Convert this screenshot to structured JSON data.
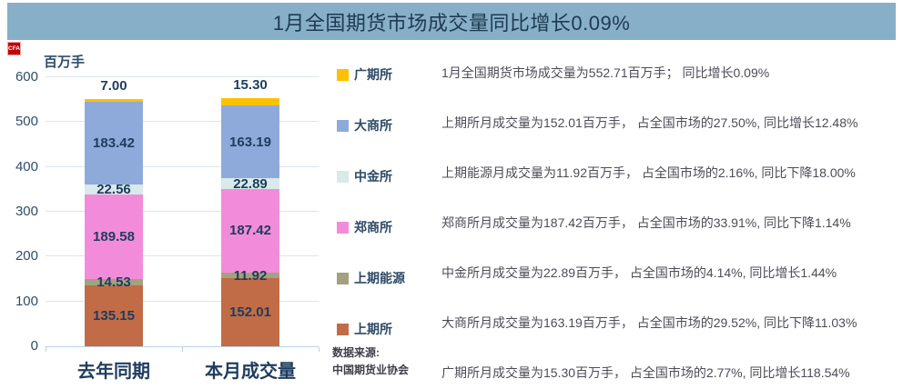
{
  "header": {
    "title": "1月全国期货市场成交量同比增长0.09%",
    "bg_color": "#88AFC8"
  },
  "logo": {
    "text": "CFA",
    "color": "#C00000"
  },
  "chart_data": {
    "type": "bar",
    "stacked": true,
    "unit_label": "百万手",
    "categories": [
      "去年同期",
      "本月成交量"
    ],
    "series": [
      {
        "name": "上期所",
        "color": "#C16C47",
        "values": [
          135.15,
          152.01
        ]
      },
      {
        "name": "上期能源",
        "color": "#A2A280",
        "values": [
          14.53,
          11.92
        ]
      },
      {
        "name": "郑商所",
        "color": "#F28CDA",
        "values": [
          189.58,
          187.42
        ]
      },
      {
        "name": "中金所",
        "color": "#D8EAEA",
        "values": [
          22.56,
          22.89
        ]
      },
      {
        "name": "大商所",
        "color": "#8EAADB",
        "values": [
          183.42,
          163.19
        ]
      },
      {
        "name": "广期所",
        "color": "#FFC000",
        "values": [
          7.0,
          15.3
        ]
      }
    ],
    "ylim": [
      0,
      600
    ],
    "yticks": [
      0,
      100,
      200,
      300,
      400,
      500,
      600
    ],
    "grid": true,
    "legend_position": "right",
    "legend_order_top_to_bottom": [
      "广期所",
      "大商所",
      "中金所",
      "郑商所",
      "上期能源",
      "上期所"
    ],
    "value_label_decimals": 2
  },
  "annotations": [
    "1月全国期货市场成交量为552.71百万手； 同比增长0.09%",
    "上期所月成交量为152.01百万手， 占全国市场的27.50%, 同比增长12.48%",
    "上期能源月成交量为11.92百万手， 占全国市场的2.16%, 同比下降18.00%",
    "郑商所月成交量为187.42百万手， 占全国市场的33.91%, 同比下降1.14%",
    "中金所月成交量为22.89百万手， 占全国市场的4.14%, 同比增长1.44%",
    "大商所月成交量为163.19百万手， 占全国市场的29.52%, 同比下降11.03%",
    "广期所月成交量为15.30百万手， 占全国市场的2.77%, 同比增长118.54%"
  ],
  "source": {
    "label": "数据来源:",
    "name": "中国期货业协会"
  }
}
